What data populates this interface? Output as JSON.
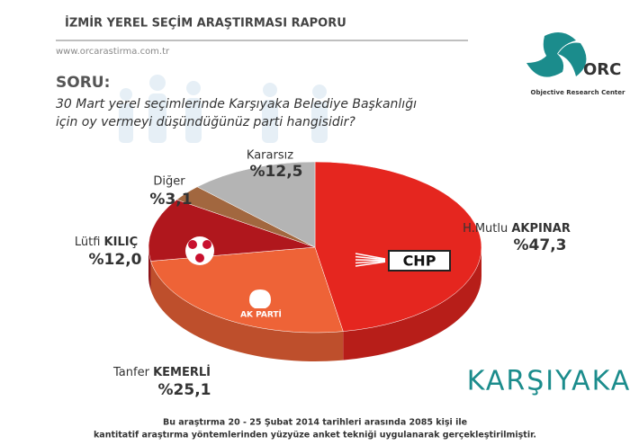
{
  "header": {
    "title": "İZMİR YEREL SEÇİM ARAŞTIRMASI RAPORU",
    "url": "www.orcarastirma.com.tr"
  },
  "logo": {
    "name": "ORC",
    "subtitle": "Objective Research Center"
  },
  "question": {
    "label": "SORU:",
    "lines": [
      "30 Mart yerel seçimlerinde Karşıyaka Belediye Başkanlığı",
      "için oy vermeyi düşündüğünüz parti hangisidir?"
    ]
  },
  "chart_data": {
    "type": "pie",
    "categories": [
      "H.Mutlu AKPINAR",
      "Tanfer KEMERLİ",
      "Lütfi KILIÇ",
      "Diğer",
      "Kararsız"
    ],
    "values": [
      47.3,
      25.1,
      12.0,
      3.1,
      12.5
    ],
    "value_labels": [
      "%47,3",
      "%25,1",
      "%12,0",
      "%3,1",
      "%12,5"
    ],
    "colors": [
      "#e5261f",
      "#ee6337",
      "#b0171d",
      "#a2673f",
      "#b4b4b4"
    ],
    "party_logos": [
      "CHP",
      "AK PARTİ"
    ]
  },
  "district": "KARŞIYAKA",
  "footer": [
    "Bu araştırma 20 - 25 Şubat 2014 tarihleri arasında  2085 kişi ile",
    "kantitatif araştırma yöntemlerinden yüzyüze anket tekniği  uygulanarak gerçekleştirilmiştir."
  ]
}
